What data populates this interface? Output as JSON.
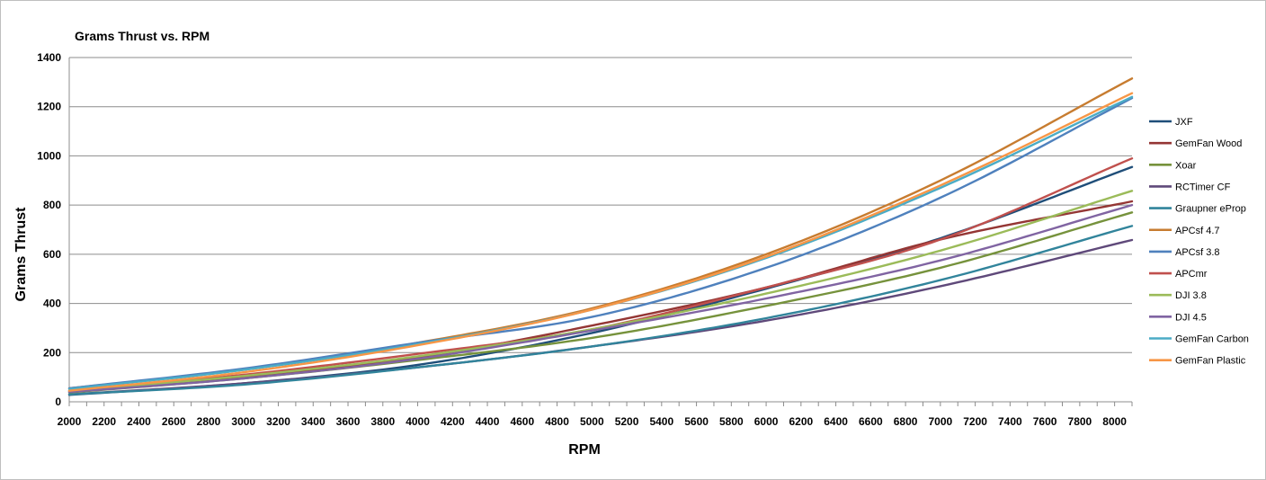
{
  "chart_data": {
    "type": "line",
    "title": "Grams Thrust vs. RPM",
    "xlabel": "RPM",
    "ylabel": "Grams Thrust",
    "xlim": [
      2000,
      8100
    ],
    "ylim": [
      0,
      1400
    ],
    "y_ticks": [
      0,
      200,
      400,
      600,
      800,
      1000,
      1200,
      1400
    ],
    "x_ticks": [
      2000,
      2200,
      2400,
      2600,
      2800,
      3000,
      3200,
      3400,
      3600,
      3800,
      4000,
      4200,
      4400,
      4600,
      4800,
      5000,
      5200,
      5400,
      5600,
      5800,
      6000,
      6200,
      6400,
      6600,
      6800,
      7000,
      7200,
      7400,
      7600,
      7800,
      8000
    ],
    "grid": "horizontal",
    "legend_position": "right",
    "x": [
      2000,
      3000,
      4000,
      5000,
      6000,
      7000,
      8100
    ],
    "series": [
      {
        "name": "JXF",
        "color": "#1f4e79",
        "values": [
          28,
          75,
          150,
          280,
          460,
          665,
          955
        ]
      },
      {
        "name": "GemFan Wood",
        "color": "#943634",
        "values": [
          42,
          100,
          180,
          310,
          465,
          660,
          815
        ]
      },
      {
        "name": "Xoar",
        "color": "#76923c",
        "values": [
          38,
          95,
          170,
          260,
          390,
          545,
          770
        ]
      },
      {
        "name": "RCTimer CF",
        "color": "#5f497a",
        "values": [
          30,
          75,
          140,
          225,
          330,
          470,
          658
        ]
      },
      {
        "name": "Graupner eProp",
        "color": "#31849b",
        "values": [
          30,
          70,
          140,
          225,
          340,
          495,
          715
        ]
      },
      {
        "name": "APCsf 4.7",
        "color": "#c77c30",
        "values": [
          55,
          130,
          240,
          380,
          600,
          900,
          1315
        ]
      },
      {
        "name": "APCsf 3.8",
        "color": "#4f81bd",
        "values": [
          55,
          135,
          240,
          345,
          545,
          830,
          1235
        ]
      },
      {
        "name": "APCmr",
        "color": "#c0504d",
        "values": [
          45,
          110,
          195,
          295,
          465,
          660,
          990
        ]
      },
      {
        "name": "DJI 3.8",
        "color": "#9bbb59",
        "values": [
          45,
          105,
          185,
          295,
          440,
          615,
          858
        ]
      },
      {
        "name": "DJI 4.5",
        "color": "#8064a2",
        "values": [
          40,
          95,
          175,
          290,
          420,
          575,
          800
        ]
      },
      {
        "name": "GemFan Carbon",
        "color": "#4bacc6",
        "values": [
          52,
          130,
          235,
          375,
          585,
          870,
          1240
        ]
      },
      {
        "name": "GemFan Plastic",
        "color": "#f79646",
        "values": [
          45,
          120,
          230,
          375,
          590,
          880,
          1255
        ]
      }
    ]
  }
}
